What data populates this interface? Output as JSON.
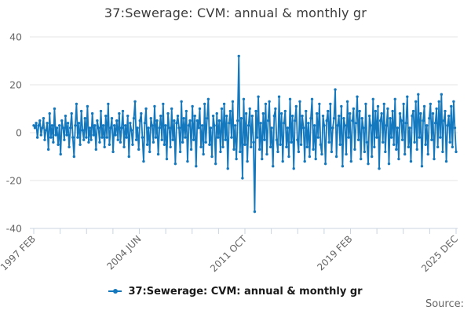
{
  "title": "37:Sewerage: CVM: annual & monthly gr",
  "legend": {
    "label": "37:Sewerage: CVM: annual & monthly gr"
  },
  "source_label": "Source:",
  "colors": {
    "line": "#1478be",
    "grid": "#e6e6e6",
    "axis": "#c8d4e0",
    "tick_label": "#666666",
    "title_text": "#3a3a3a"
  },
  "chart_data": {
    "type": "line",
    "title": "37:Sewerage: CVM: annual & monthly gr",
    "series_name": "37:Sewerage: CVM: annual & monthly gr",
    "x_start": "1997 FEB",
    "x_end": "2025 DEC",
    "x_frequency": "monthly",
    "x_ticks": {
      "labels": [
        "1997 FEB",
        "2004 JUN",
        "2011 OCT",
        "2019 FEB",
        "2025 DEC"
      ],
      "label_positions": [
        0,
        4,
        8,
        12,
        16
      ],
      "total": 17
    },
    "y_ticks": [
      40,
      20,
      0,
      -20,
      -40
    ],
    "ylim": [
      -40,
      40
    ],
    "grid": "horizontal",
    "legend_position": "bottom",
    "marker": "circle",
    "values": [
      3,
      2,
      4,
      -2,
      3,
      5,
      -1,
      2,
      6,
      -3,
      1,
      4,
      -7,
      8,
      -2,
      3,
      -4,
      10,
      -1,
      2,
      -5,
      3,
      -9,
      5,
      2,
      -3,
      7,
      -1,
      4,
      -6,
      2,
      8,
      -2,
      -10,
      3,
      12,
      -2,
      4,
      -5,
      9,
      1,
      -3,
      6,
      -2,
      11,
      -4,
      2,
      -3,
      8,
      -1,
      3,
      -7,
      5,
      2,
      -4,
      9,
      -2,
      3,
      -6,
      7,
      -2,
      12,
      -5,
      2,
      6,
      -8,
      3,
      -1,
      5,
      -3,
      8,
      -4,
      2,
      9,
      -6,
      3,
      -2,
      7,
      -10,
      4,
      1,
      -5,
      6,
      13,
      -3,
      2,
      -7,
      5,
      8,
      -2,
      -12,
      4,
      10,
      -5,
      2,
      -8,
      6,
      3,
      -4,
      11,
      -2,
      5,
      -9,
      2,
      7,
      -3,
      12,
      -5,
      3,
      -11,
      8,
      2,
      -6,
      10,
      -3,
      5,
      -13,
      4,
      7,
      2,
      -8,
      13,
      -4,
      6,
      -2,
      9,
      -12,
      3,
      5,
      -7,
      11,
      -3,
      7,
      -14,
      5,
      2,
      10,
      -6,
      3,
      -9,
      12,
      -4,
      6,
      14,
      -5,
      2,
      -10,
      7,
      3,
      -13,
      8,
      -2,
      5,
      -8,
      10,
      -6,
      12,
      -3,
      7,
      -15,
      4,
      9,
      -2,
      13,
      -7,
      3,
      -11,
      5,
      32,
      -8,
      6,
      -19,
      14,
      -5,
      8,
      -12,
      3,
      10,
      -6,
      7,
      -4,
      -33,
      9,
      -2,
      15,
      -7,
      4,
      -11,
      8,
      -3,
      12,
      -9,
      5,
      13,
      -6,
      2,
      -14,
      7,
      10,
      -3,
      -8,
      15,
      -5,
      8,
      -12,
      4,
      9,
      -6,
      2,
      -10,
      14,
      -4,
      7,
      -15,
      5,
      11,
      -3,
      -8,
      13,
      -5,
      7,
      2,
      -12,
      9,
      -6,
      4,
      -10,
      6,
      14,
      -7,
      3,
      -11,
      8,
      -2,
      12,
      -5,
      -9,
      7,
      3,
      -13,
      5,
      9,
      -4,
      12,
      -8,
      2,
      6,
      18,
      -10,
      3,
      7,
      -5,
      11,
      -14,
      6,
      3,
      -9,
      13,
      -2,
      8,
      -12,
      5,
      10,
      -7,
      4,
      15,
      -3,
      9,
      -11,
      6,
      2,
      -8,
      12,
      -4,
      -13,
      7,
      3,
      -10,
      14,
      -6,
      9,
      -2,
      11,
      -15,
      5,
      8,
      -4,
      12,
      -8,
      3,
      10,
      -13,
      6,
      -2,
      9,
      -5,
      14,
      -7,
      2,
      -11,
      8,
      5,
      -3,
      12,
      -9,
      4,
      15,
      -6,
      2,
      -12,
      7,
      9,
      -4,
      13,
      -7,
      16,
      -2,
      8,
      -14,
      5,
      11,
      -5,
      3,
      -9,
      6,
      12,
      -3,
      8,
      -11,
      4,
      10,
      -6,
      13,
      -2,
      16,
      -8,
      5,
      9,
      -12,
      3,
      7,
      -4,
      11,
      -6,
      13,
      2,
      -8
    ]
  }
}
